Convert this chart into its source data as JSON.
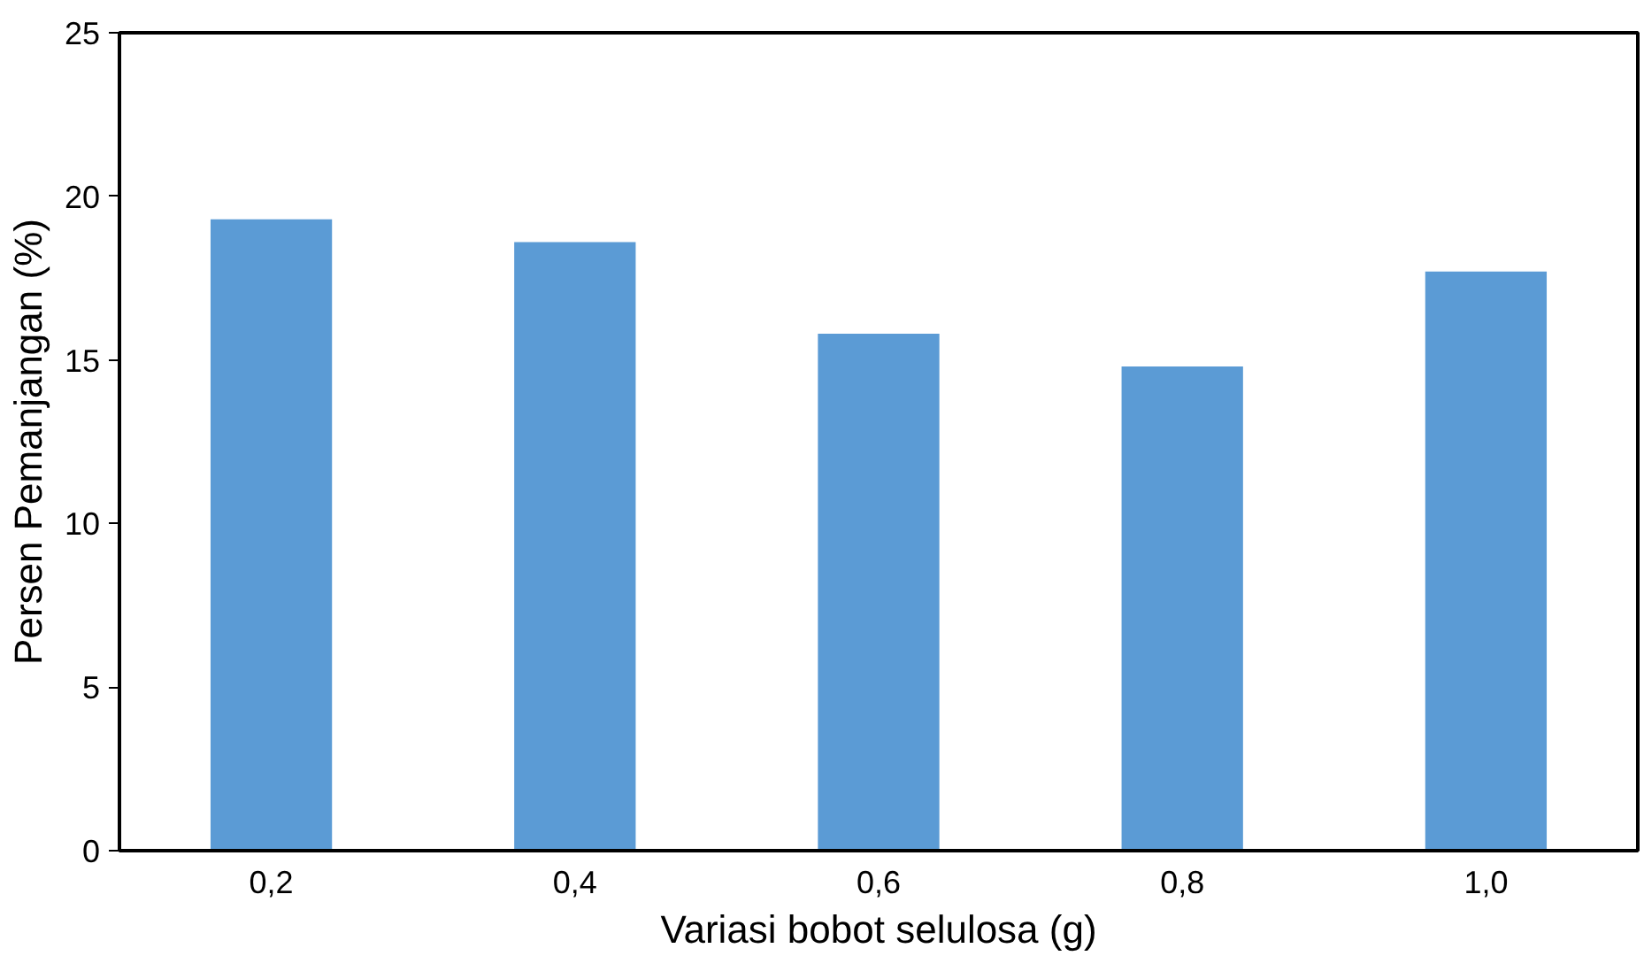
{
  "chart_data": {
    "type": "bar",
    "xlabel": "Variasi bobot selulosa (g)",
    "ylabel": "Persen Pemanjangan (%)",
    "categories": [
      "0,2",
      "0,4",
      "0,6",
      "0,8",
      "1,0"
    ],
    "values": [
      19.3,
      18.6,
      15.8,
      14.8,
      17.7
    ],
    "color": "#5b9bd5",
    "ylim": [
      0,
      25
    ],
    "yticks": [
      0,
      5,
      10,
      15,
      20,
      25
    ],
    "grid": false
  }
}
